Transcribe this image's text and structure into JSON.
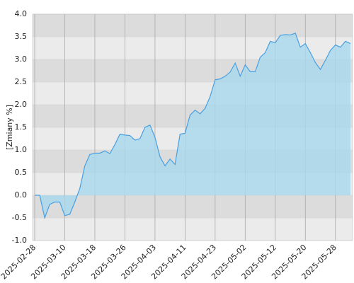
{
  "chart_data": {
    "type": "area",
    "y_label": "[Zmiany %]",
    "categories": [
      "2025-02-28",
      null,
      null,
      null,
      null,
      null,
      "2025-03-10",
      null,
      null,
      null,
      null,
      null,
      "2025-03-18",
      null,
      null,
      null,
      null,
      null,
      "2025-03-26",
      null,
      null,
      null,
      null,
      null,
      "2025-04-03",
      null,
      null,
      null,
      null,
      null,
      "2025-04-11",
      null,
      null,
      null,
      null,
      null,
      "2025-04-23",
      null,
      null,
      null,
      null,
      null,
      "2025-05-02",
      null,
      null,
      null,
      null,
      null,
      "2025-05-12",
      null,
      null,
      null,
      null,
      null,
      "2025-05-20",
      null,
      null,
      null,
      null,
      null,
      "2025-05-28",
      null,
      null,
      null
    ],
    "series": [
      {
        "name": "Zmiany %",
        "color": "#4a9fe0",
        "fill": "#a8d8ec",
        "values": [
          0,
          0,
          -0.5,
          -0.2,
          -0.15,
          -0.15,
          -0.45,
          -0.42,
          -0.15,
          0.15,
          0.65,
          0.9,
          0.93,
          0.93,
          0.98,
          0.92,
          1.12,
          1.35,
          1.33,
          1.32,
          1.22,
          1.25,
          1.5,
          1.55,
          1.28,
          0.85,
          0.65,
          0.8,
          0.68,
          1.35,
          1.37,
          1.77,
          1.88,
          1.8,
          1.92,
          2.18,
          2.55,
          2.57,
          2.63,
          2.72,
          2.92,
          2.63,
          2.88,
          2.73,
          2.73,
          3.05,
          3.15,
          3.4,
          3.37,
          3.53,
          3.55,
          3.54,
          3.58,
          3.27,
          3.35,
          3.15,
          2.93,
          2.78,
          2.98,
          3.2,
          3.32,
          3.27,
          3.4,
          3.35
        ]
      }
    ],
    "ylim": [
      -1,
      4
    ],
    "yticks": [
      {
        "value": -1,
        "label": "-1.0"
      },
      -0.5,
      {
        "value": 0,
        "label": "0.0"
      },
      0.5,
      {
        "value": 1,
        "label": "1.0"
      },
      1.5,
      {
        "value": 2,
        "label": "2.0"
      },
      2.5,
      {
        "value": 3,
        "label": "3.0"
      },
      3.5,
      {
        "value": 4,
        "label": "4.0"
      }
    ],
    "grid": true
  }
}
